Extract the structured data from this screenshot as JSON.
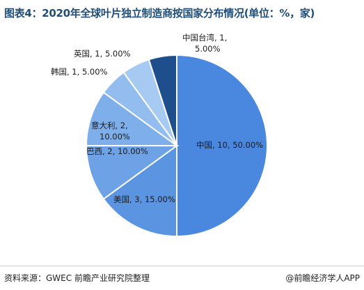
{
  "title": "图表4：2020年全球叶片独立制造商按国家分布情况(单位：%，家)",
  "source": "资料来源：GWEC 前瞻产业研究院整理",
  "brand": "@前瞻经济学人APP",
  "chart_data": {
    "type": "pie",
    "title": "图表4：2020年全球叶片独立制造商按国家分布情况(单位：%，家)",
    "slices": [
      {
        "name": "中国",
        "value": 10,
        "percent": 50.0,
        "color": "#4a88e0",
        "label_lines": [
          "中国, 10, 50.00%"
        ]
      },
      {
        "name": "美国",
        "value": 3,
        "percent": 15.0,
        "color": "#5b95e2",
        "label_lines": [
          "美国, 3, 15.00%"
        ]
      },
      {
        "name": "巴西",
        "value": 2,
        "percent": 10.0,
        "color": "#6da2e6",
        "label_lines": [
          "巴西, 2, 10.00%"
        ]
      },
      {
        "name": "意大利",
        "value": 2,
        "percent": 10.0,
        "color": "#7fafea",
        "label_lines": [
          "意大利, 2,",
          "10.00%"
        ]
      },
      {
        "name": "韩国",
        "value": 1,
        "percent": 5.0,
        "color": "#93bdee",
        "label_lines": [
          "韩国, 1, 5.00%"
        ]
      },
      {
        "name": "英国",
        "value": 1,
        "percent": 5.0,
        "color": "#a7caf2",
        "label_lines": [
          "英国, 1, 5.00%"
        ]
      },
      {
        "name": "中国台湾",
        "value": 1,
        "percent": 5.0,
        "color": "#1f4e8c",
        "label_lines": [
          "中国台湾, 1,",
          "5.00%"
        ]
      }
    ]
  }
}
